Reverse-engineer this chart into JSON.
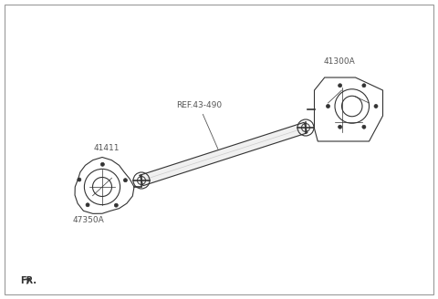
{
  "bg_color": "#ffffff",
  "line_color": "#333333",
  "label_color": "#555555",
  "labels": {
    "ref": "REF.43-490",
    "part_top_right": "41300A",
    "part_mid_left": "41411",
    "part_bottom_left": "47350A"
  },
  "fr_label": "FR.",
  "figsize": [
    4.8,
    3.28
  ],
  "dpi": 100
}
